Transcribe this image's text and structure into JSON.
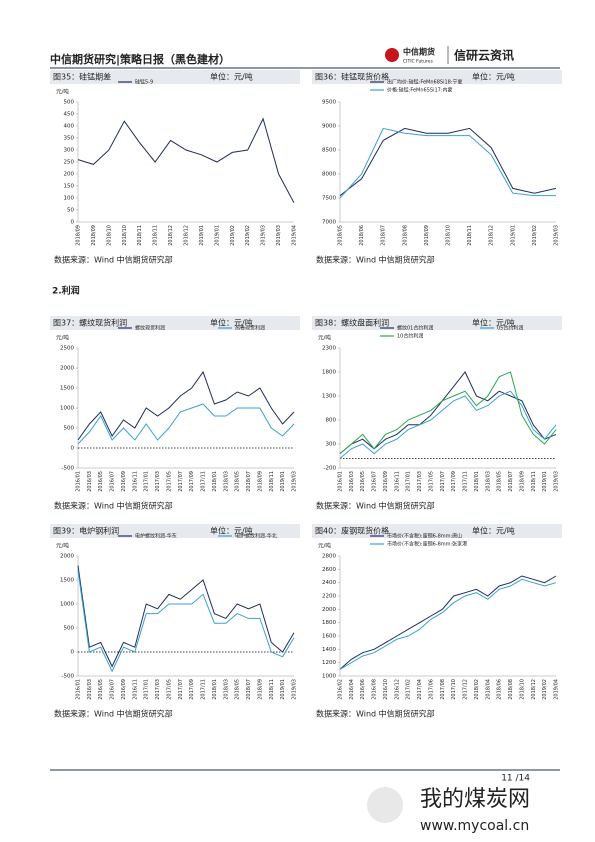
{
  "header": {
    "title": "中信期货研究|策略日报（黑色建材）",
    "logo": "中信期货",
    "logo_en": "CITIC Futures",
    "brand": "信研云资讯"
  },
  "section": "2.利润",
  "chart_data": [
    {
      "type": "line",
      "title": "图35：硅锰期差",
      "unit": "单位：元/吨",
      "ylabel": "元/吨",
      "categories": [
        "2018/09",
        "2018/09",
        "2018/10",
        "2018/10",
        "2018/11",
        "2018/11",
        "2018/12",
        "2018/12",
        "2019/01",
        "2019/01",
        "2019/02",
        "2019/02",
        "2019/03",
        "2019/03",
        "2019/04"
      ],
      "series": [
        {
          "name": "硅锰5-9",
          "color": "#1f2d5c",
          "values": [
            260,
            240,
            300,
            420,
            330,
            250,
            340,
            300,
            280,
            250,
            290,
            300,
            430,
            200,
            80
          ]
        }
      ],
      "ylim": [
        0,
        500
      ],
      "yticks": [
        0,
        50,
        100,
        150,
        200,
        250,
        300,
        350,
        400,
        450,
        500
      ],
      "source": "数据来源：Wind  中信期货研究部"
    },
    {
      "type": "line",
      "title": "图36：硅锰现货价格",
      "unit": "单位：元/吨",
      "categories": [
        "2018/05",
        "2018/06",
        "2018/07",
        "2018/08",
        "2018/09",
        "2018/10",
        "2018/11",
        "2018/12",
        "2019/01",
        "2019/02",
        "2019/03"
      ],
      "series": [
        {
          "name": "出厂均价:硅锰:FeMn68Si18:宁夏",
          "color": "#1f2d5c",
          "values": [
            7550,
            7900,
            8700,
            8950,
            8850,
            8850,
            8950,
            8550,
            7700,
            7600,
            7700
          ]
        },
        {
          "name": "价格:硅锰:FeMn65Si17:内蒙",
          "color": "#3aa0d8",
          "values": [
            7500,
            8000,
            8950,
            8850,
            8800,
            8800,
            8800,
            8400,
            7600,
            7550,
            7550
          ]
        }
      ],
      "ylim": [
        7000,
        9500
      ],
      "yticks": [
        7000,
        7500,
        8000,
        8500,
        9000,
        9500
      ],
      "source": "数据来源：Wind  中信期货研究部"
    },
    {
      "type": "line",
      "title": "图37：螺纹现货利润",
      "unit": "单位：元/吨",
      "ylabel": "元/吨",
      "categories": [
        "2016/01",
        "2016/03",
        "2016/05",
        "2016/07",
        "2016/09",
        "2016/11",
        "2017/01",
        "2017/03",
        "2017/05",
        "2017/07",
        "2017/09",
        "2017/11",
        "2018/01",
        "2018/03",
        "2018/05",
        "2018/07",
        "2018/09",
        "2018/11",
        "2019/01",
        "2019/03"
      ],
      "series": [
        {
          "name": "螺纹现货利润",
          "color": "#1f2d5c",
          "values": [
            200,
            600,
            900,
            300,
            700,
            500,
            1000,
            800,
            1000,
            1300,
            1500,
            1900,
            1100,
            1200,
            1400,
            1300,
            1500,
            1000,
            600,
            900
          ]
        },
        {
          "name": "热卷现货利润",
          "color": "#3aa0d8",
          "values": [
            100,
            400,
            800,
            200,
            500,
            200,
            600,
            200,
            500,
            900,
            1000,
            1100,
            800,
            800,
            1000,
            1000,
            1000,
            500,
            300,
            600
          ]
        }
      ],
      "ylim": [
        -500,
        2500
      ],
      "yticks": [
        -500,
        0,
        500,
        1000,
        1500,
        2000,
        2500
      ],
      "source": "数据来源：Wind  中信期货研究部"
    },
    {
      "type": "line",
      "title": "图38：螺纹盘面利润",
      "unit": "单位：元/吨",
      "ylabel": "元/吨",
      "categories": [
        "2016/01",
        "2016/03",
        "2016/05",
        "2016/07",
        "2016/09",
        "2016/11",
        "2017/01",
        "2017/03",
        "2017/05",
        "2017/07",
        "2017/09",
        "2017/11",
        "2018/01",
        "2018/03",
        "2018/05",
        "2018/07",
        "2018/09",
        "2018/11",
        "2019/01",
        "2019/03"
      ],
      "series": [
        {
          "name": "螺纹01合约利润",
          "color": "#1f2d5c",
          "values": [
            100,
            300,
            400,
            200,
            400,
            500,
            700,
            700,
            900,
            1200,
            1500,
            1800,
            1300,
            1200,
            1400,
            1300,
            1200,
            700,
            400,
            500
          ]
        },
        {
          "name": "05合约利润",
          "color": "#3aa0d8",
          "values": [
            0,
            200,
            300,
            100,
            300,
            400,
            600,
            700,
            800,
            1000,
            1200,
            1300,
            1000,
            1100,
            1300,
            1400,
            1100,
            600,
            400,
            700
          ]
        },
        {
          "name": "10合约利润",
          "color": "#2aa84a",
          "values": [
            100,
            300,
            500,
            200,
            500,
            600,
            800,
            900,
            1000,
            1200,
            1300,
            1400,
            1100,
            1300,
            1700,
            1800,
            900,
            500,
            300,
            600
          ]
        }
      ],
      "ylim": [
        -200,
        2300
      ],
      "yticks": [
        -200,
        300,
        800,
        1300,
        1800,
        2300
      ],
      "source": "数据来源：Wind  中信期货研究部"
    },
    {
      "type": "line",
      "title": "图39：电炉钢利润",
      "unit": "单位：元/吨",
      "ylabel": "元/吨",
      "categories": [
        "2016/01",
        "2016/03",
        "2016/05",
        "2016/07",
        "2016/09",
        "2016/11",
        "2017/01",
        "2017/03",
        "2017/05",
        "2017/07",
        "2017/09",
        "2017/11",
        "2018/01",
        "2018/03",
        "2018/05",
        "2018/07",
        "2018/09",
        "2018/11",
        "2019/01",
        "2019/03"
      ],
      "series": [
        {
          "name": "电炉螺纹利润-华东",
          "color": "#1f2d5c",
          "values": [
            1800,
            100,
            200,
            -300,
            200,
            100,
            1000,
            900,
            1200,
            1100,
            1300,
            1500,
            800,
            700,
            1000,
            900,
            1000,
            200,
            0,
            400
          ]
        },
        {
          "name": "电炉螺纹利润-华北",
          "color": "#3aa0d8",
          "values": [
            1700,
            0,
            100,
            -400,
            100,
            0,
            800,
            800,
            1000,
            1000,
            1000,
            1200,
            600,
            600,
            800,
            700,
            700,
            0,
            -100,
            300
          ]
        }
      ],
      "ylim": [
        -500,
        2000
      ],
      "yticks": [
        -500,
        0,
        500,
        1000,
        1500,
        2000
      ],
      "source": "数据来源：Wind  中信期货研究部"
    },
    {
      "type": "line",
      "title": "图40：废钢现货价格",
      "unit": "单位：元/吨",
      "ylabel": "元/吨",
      "categories": [
        "2016/02",
        "2016/04",
        "2016/06",
        "2016/08",
        "2016/10",
        "2016/12",
        "2017/02",
        "2017/04",
        "2017/06",
        "2017/08",
        "2017/10",
        "2017/12",
        "2018/02",
        "2018/04",
        "2018/06",
        "2018/08",
        "2018/10",
        "2018/12",
        "2019/02",
        "2019/04"
      ],
      "series": [
        {
          "name": "市场价(不含税):废钢6-8mm:唐山",
          "color": "#1f2d5c",
          "values": [
            1100,
            1250,
            1350,
            1400,
            1500,
            1600,
            1700,
            1800,
            1900,
            2000,
            2200,
            2250,
            2300,
            2200,
            2350,
            2400,
            2500,
            2450,
            2400,
            2500
          ]
        },
        {
          "name": "市场价(不含税):废钢6-8mm:张家港",
          "color": "#3aa0d8",
          "values": [
            1100,
            1200,
            1300,
            1350,
            1450,
            1550,
            1600,
            1700,
            1850,
            1950,
            2100,
            2200,
            2250,
            2150,
            2300,
            2350,
            2450,
            2400,
            2350,
            2400
          ]
        }
      ],
      "ylim": [
        1000,
        2800
      ],
      "yticks": [
        1000,
        1200,
        1400,
        1600,
        1800,
        2000,
        2200,
        2400,
        2600,
        2800
      ],
      "source": "数据来源：Wind  中信期货研究部"
    }
  ],
  "footer": {
    "page": "11 /14"
  },
  "watermark": {
    "name": "我的煤炭网",
    "url": "www.mycoal.cn"
  }
}
